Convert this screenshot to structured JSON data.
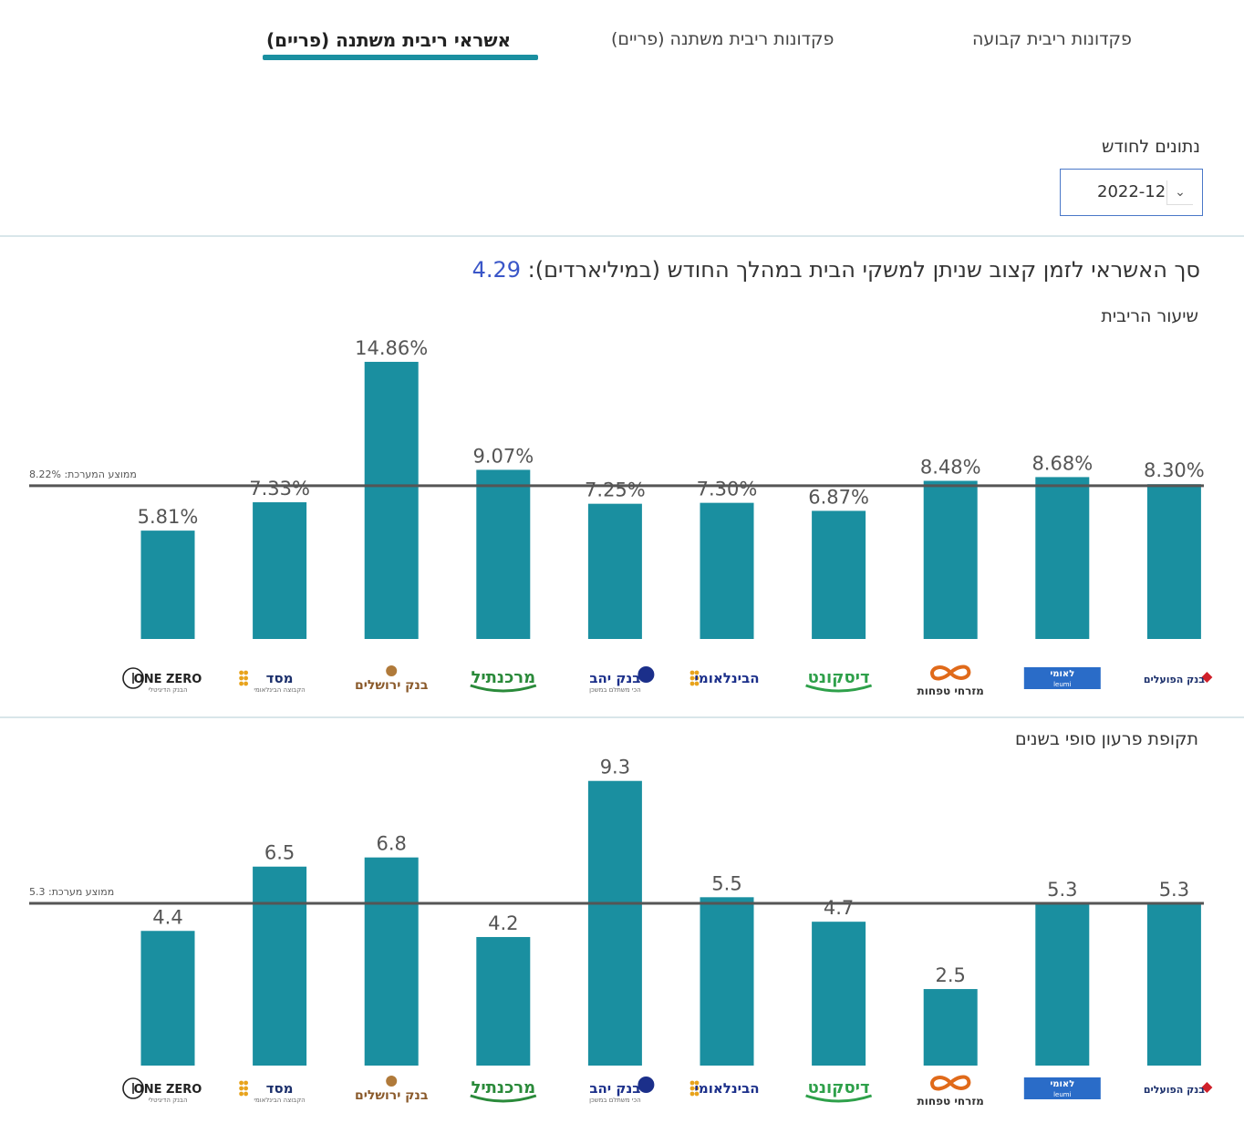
{
  "tabs": [
    {
      "label": "פקדונות ריבית קבועה",
      "active": false
    },
    {
      "label": "פקדונות ריבית משתנה (פריים)",
      "active": false
    },
    {
      "label": "אשראי ריבית משתנה (פריים)",
      "active": true
    }
  ],
  "month_filter": {
    "label": "נתונים לחודש",
    "value": "2022-12"
  },
  "headline": {
    "text": "סך האשראי לזמן קצוב שניתן למשקי הבית במהלך החודש  (במיליארדים):",
    "value": "4.29"
  },
  "colors": {
    "bar": "#1a8fa0",
    "avg_line": "#555555",
    "accent": "#3a56c8"
  },
  "chart_data": [
    {
      "type": "bar",
      "title": "שיעור הריבית",
      "categories": [
        "One Zero",
        "מסד",
        "בנק ירושלים",
        "מרכנתיל",
        "בנק יהב",
        "הבינלאומי",
        "דיסקונט",
        "מזרחי טפחות",
        "לאומי",
        "בנק הפועלים"
      ],
      "values": [
        5.81,
        7.33,
        14.86,
        9.07,
        7.25,
        7.3,
        6.87,
        8.48,
        8.68,
        8.3
      ],
      "value_labels": [
        "5.81%",
        "7.33%",
        "14.86%",
        "9.07%",
        "7.25%",
        "7.30%",
        "6.87%",
        "8.48%",
        "8.68%",
        "8.30%"
      ],
      "average": 8.22,
      "average_label": "ממוצע המערכת: 8.22%",
      "ylim": [
        0,
        15.2
      ],
      "grid": false
    },
    {
      "type": "bar",
      "title": "תקופת פרעון סופי בשנים",
      "categories": [
        "One Zero",
        "מסד",
        "בנק ירושלים",
        "מרכנתיל",
        "בנק יהב",
        "הבינלאומי",
        "דיסקונט",
        "מזרחי טפחות",
        "לאומי",
        "בנק הפועלים"
      ],
      "values": [
        4.4,
        6.5,
        6.8,
        4.2,
        9.3,
        5.5,
        4.7,
        2.5,
        5.3,
        5.3
      ],
      "value_labels": [
        "4.4",
        "6.5",
        "6.8",
        "4.2",
        "9.3",
        "5.5",
        "4.7",
        "2.5",
        "5.3",
        "5.3"
      ],
      "average": 5.3,
      "average_label": "ממוצע מערכת: 5.3",
      "ylim": [
        0,
        9.5
      ],
      "grid": false
    }
  ],
  "bank_logos": [
    {
      "name": "one-zero",
      "text": "ONE ZERO",
      "sub": "הבנק הדיגיטלי",
      "color": "#222222"
    },
    {
      "name": "masad",
      "text": "מסד",
      "sub": "הקבוצה הבינלאומי",
      "color": "#1b2f6b"
    },
    {
      "name": "jerusalem",
      "text": "בנק ירושלים",
      "sub": "",
      "color": "#8a5a2b"
    },
    {
      "name": "mercantile",
      "text": "מרכנתיל",
      "sub": "",
      "color": "#2a8a3a"
    },
    {
      "name": "yahav",
      "text": "בנק יהב",
      "sub": "הכי משתלם במשכן",
      "color": "#1b2f8a"
    },
    {
      "name": "beinleumi",
      "text": "הבינלאומי",
      "sub": "",
      "color": "#1b2f8a"
    },
    {
      "name": "discount",
      "text": "דיסקונט",
      "sub": "",
      "color": "#2ea04a"
    },
    {
      "name": "mizrahi",
      "text": "מזרחי טפחות",
      "sub": "",
      "color": "#333333"
    },
    {
      "name": "leumi",
      "text": "לאומי",
      "sub": "leumi",
      "color": "#2a6cc8"
    },
    {
      "name": "hapoalim",
      "text": "בנק הפועלים",
      "sub": "",
      "color": "#1b2f6b"
    }
  ]
}
